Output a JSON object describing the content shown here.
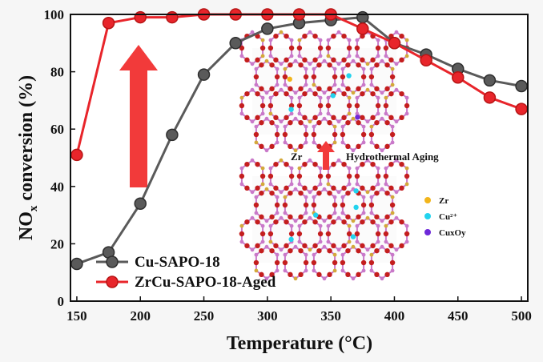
{
  "chart_data": {
    "type": "line",
    "xlabel": "Temperature (°C)",
    "ylabel_main": "NO",
    "ylabel_sub": "x",
    "ylabel_rest": " conversion (%)",
    "xlim": [
      145,
      505
    ],
    "ylim": [
      0,
      100
    ],
    "x_ticks": [
      150,
      200,
      250,
      300,
      350,
      400,
      450,
      500
    ],
    "y_ticks": [
      0,
      20,
      40,
      60,
      80,
      100
    ],
    "legend_position": "bottom-left",
    "series": [
      {
        "name": "Cu-SAPO-18",
        "color": "#5a5a5a",
        "x": [
          150,
          175,
          200,
          225,
          250,
          275,
          300,
          325,
          350,
          375,
          400,
          425,
          450,
          475,
          500
        ],
        "y": [
          13,
          17,
          34,
          58,
          79,
          90,
          95,
          97,
          98,
          99,
          90,
          86,
          81,
          77,
          75
        ]
      },
      {
        "name": "ZrCu-SAPO-18-Aged",
        "color": "#e8252b",
        "x": [
          150,
          175,
          200,
          225,
          250,
          275,
          300,
          325,
          350,
          375,
          400,
          425,
          450,
          475,
          500
        ],
        "y": [
          51,
          97,
          99,
          99,
          100,
          100,
          100,
          100,
          100,
          95,
          90,
          84,
          78,
          71,
          67
        ]
      }
    ]
  },
  "inset": {
    "label_zr": "Zr",
    "label_aging": "Hydrothermal Aging",
    "key": [
      {
        "label": "Zr",
        "color": "#f2b51b"
      },
      {
        "label": "Cu²⁺",
        "color": "#22d3ee"
      },
      {
        "label": "CuxOy",
        "color": "#6d28d9"
      }
    ]
  },
  "colors": {
    "arrow": "#f23a3a",
    "framework_o": "#c41e1e",
    "framework_t": "#c979c9"
  }
}
